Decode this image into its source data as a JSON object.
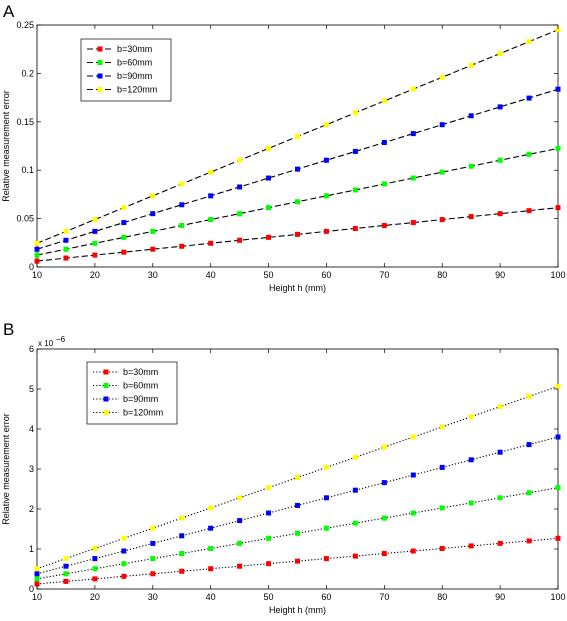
{
  "chart_data": [
    {
      "type": "line",
      "panel_label": "A",
      "xlabel": "Height h (mm)",
      "ylabel": "Relative measurement error",
      "xlim": [
        10,
        100
      ],
      "ylim": [
        0,
        0.25
      ],
      "xticks": [
        "10",
        "20",
        "30",
        "40",
        "50",
        "60",
        "70",
        "80",
        "90",
        "100"
      ],
      "yticks": [
        "0",
        "0.05",
        "0.1",
        "0.15",
        "0.2",
        "0.25"
      ],
      "y_exponent_label": "",
      "line_style": "dashed",
      "legend_position": "top-left",
      "grid": false,
      "x": [
        10,
        15,
        20,
        25,
        30,
        35,
        40,
        45,
        50,
        55,
        60,
        65,
        70,
        75,
        80,
        85,
        90,
        95,
        100
      ],
      "series": [
        {
          "name": "b=30mm",
          "color": "#ff0000",
          "values": [
            0.0061,
            0.0092,
            0.0123,
            0.0153,
            0.0184,
            0.0214,
            0.0245,
            0.0276,
            0.0306,
            0.0337,
            0.0368,
            0.0398,
            0.0429,
            0.0459,
            0.049,
            0.0521,
            0.0551,
            0.0582,
            0.0613
          ]
        },
        {
          "name": "b=60mm",
          "color": "#00ff00",
          "values": [
            0.0123,
            0.0184,
            0.0245,
            0.0306,
            0.0368,
            0.0429,
            0.049,
            0.0551,
            0.0613,
            0.0674,
            0.0735,
            0.0796,
            0.0858,
            0.0919,
            0.098,
            0.1041,
            0.1103,
            0.1164,
            0.1225
          ]
        },
        {
          "name": "b=90mm",
          "color": "#0000ff",
          "values": [
            0.0184,
            0.0276,
            0.0368,
            0.0459,
            0.0551,
            0.0643,
            0.0735,
            0.0827,
            0.0919,
            0.1011,
            0.1103,
            0.1194,
            0.1286,
            0.1378,
            0.147,
            0.1562,
            0.1654,
            0.1745,
            0.1837
          ]
        },
        {
          "name": "b=120mm",
          "color": "#ffff00",
          "values": [
            0.0245,
            0.0368,
            0.049,
            0.0613,
            0.0735,
            0.0858,
            0.098,
            0.1103,
            0.1225,
            0.1348,
            0.147,
            0.1593,
            0.1715,
            0.1838,
            0.196,
            0.2083,
            0.2205,
            0.2328,
            0.245
          ]
        }
      ]
    },
    {
      "type": "line",
      "panel_label": "B",
      "xlabel": "Height h (mm)",
      "ylabel": "Relative measurement error",
      "xlim": [
        10,
        100
      ],
      "ylim": [
        0,
        6
      ],
      "xticks": [
        "10",
        "20",
        "30",
        "40",
        "50",
        "60",
        "70",
        "80",
        "90",
        "100"
      ],
      "yticks": [
        "0",
        "1",
        "2",
        "3",
        "4",
        "5",
        "6"
      ],
      "y_exponent_label": "x 10",
      "y_exponent_power": "−6",
      "y_scale_factor": 1e-06,
      "line_style": "dotted",
      "legend_position": "top-left",
      "grid": false,
      "x": [
        10,
        15,
        20,
        25,
        30,
        35,
        40,
        45,
        50,
        55,
        60,
        65,
        70,
        75,
        80,
        85,
        90,
        95,
        100
      ],
      "series": [
        {
          "name": "b=30mm",
          "color": "#ff0000",
          "values": [
            0.127,
            0.19,
            0.253,
            0.317,
            0.38,
            0.443,
            0.507,
            0.57,
            0.633,
            0.697,
            0.76,
            0.823,
            0.887,
            0.95,
            1.013,
            1.077,
            1.14,
            1.203,
            1.267
          ]
        },
        {
          "name": "b=60mm",
          "color": "#00ff00",
          "values": [
            0.253,
            0.38,
            0.507,
            0.633,
            0.76,
            0.887,
            1.013,
            1.14,
            1.267,
            1.393,
            1.52,
            1.647,
            1.773,
            1.9,
            2.027,
            2.153,
            2.28,
            2.407,
            2.533
          ]
        },
        {
          "name": "b=90mm",
          "color": "#0000ff",
          "values": [
            0.38,
            0.57,
            0.76,
            0.95,
            1.14,
            1.33,
            1.52,
            1.71,
            1.9,
            2.09,
            2.28,
            2.47,
            2.66,
            2.85,
            3.04,
            3.23,
            3.42,
            3.61,
            3.8
          ]
        },
        {
          "name": "b=120mm",
          "color": "#ffff00",
          "values": [
            0.507,
            0.76,
            1.013,
            1.267,
            1.52,
            1.773,
            2.027,
            2.28,
            2.533,
            2.787,
            3.04,
            3.293,
            3.547,
            3.8,
            4.053,
            4.307,
            4.56,
            4.813,
            5.067
          ]
        }
      ]
    }
  ]
}
